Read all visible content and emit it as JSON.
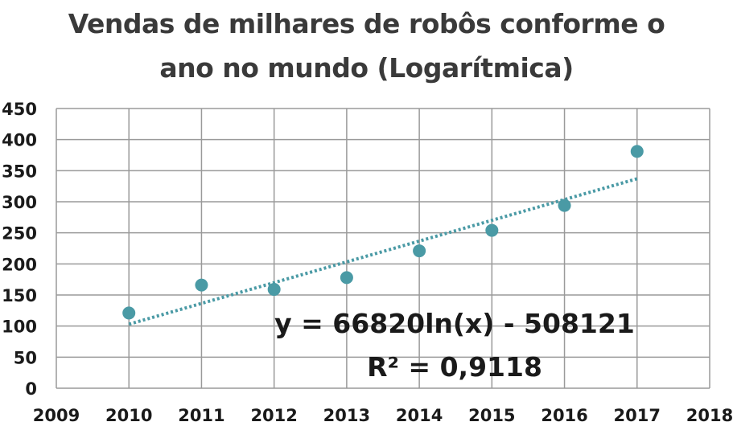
{
  "chart_data": {
    "type": "scatter",
    "title_line1": "Vendas de milhares de robôs conforme o",
    "title_line2": "ano no mundo (Logarítmica)",
    "xlim": [
      2009,
      2018
    ],
    "ylim": [
      0,
      450
    ],
    "x_ticks": [
      2009,
      2010,
      2011,
      2012,
      2013,
      2014,
      2015,
      2016,
      2017,
      2018
    ],
    "y_ticks": [
      0,
      50,
      100,
      150,
      200,
      250,
      300,
      350,
      400,
      450
    ],
    "grid": true,
    "points": [
      {
        "x": 2010,
        "y": 121
      },
      {
        "x": 2011,
        "y": 166
      },
      {
        "x": 2012,
        "y": 159
      },
      {
        "x": 2013,
        "y": 178
      },
      {
        "x": 2014,
        "y": 221
      },
      {
        "x": 2015,
        "y": 254
      },
      {
        "x": 2016,
        "y": 294
      },
      {
        "x": 2017,
        "y": 381
      }
    ],
    "trendline": {
      "type": "logarithmic",
      "style": "dotted",
      "from": {
        "x": 2010,
        "y": 103
      },
      "to": {
        "x": 2017,
        "y": 337
      }
    },
    "equation": "y = 66820ln(x) - 508121",
    "r_squared": "R² = 0,9118",
    "colors": {
      "marker": "#4a9aa5",
      "trendline": "#4a9aa5",
      "grid": "#9a9a9a",
      "text": "#1a1a1a"
    }
  }
}
